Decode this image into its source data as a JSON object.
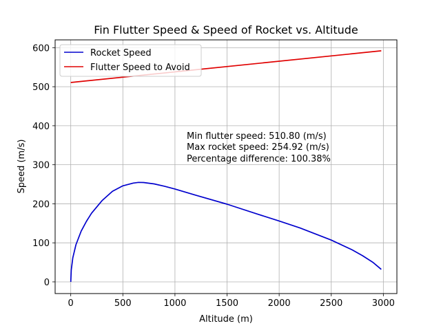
{
  "chart_data": {
    "type": "line",
    "title": "Fin Flutter Speed & Speed of Rocket vs. Altitude",
    "xlabel": "Altitude (m)",
    "ylabel": "Speed (m/s)",
    "xlim": [
      -150,
      3130
    ],
    "ylim": [
      -30,
      620
    ],
    "xticks": [
      0,
      500,
      1000,
      1500,
      2000,
      2500,
      3000
    ],
    "yticks": [
      0,
      100,
      200,
      300,
      400,
      500,
      600
    ],
    "grid": true,
    "legend_position": "upper-left",
    "series": [
      {
        "name": "Rocket Speed",
        "color": "#0000cd",
        "x": [
          0,
          5,
          20,
          50,
          100,
          150,
          200,
          300,
          400,
          500,
          600,
          650,
          700,
          800,
          900,
          1000,
          1200,
          1500,
          1800,
          2000,
          2200,
          2500,
          2700,
          2800,
          2900,
          2980
        ],
        "y": [
          0,
          30,
          62,
          95,
          130,
          155,
          176,
          208,
          232,
          246,
          253,
          254.9,
          254.5,
          251,
          245,
          238,
          222,
          199,
          173,
          156,
          138,
          107,
          82,
          67,
          50,
          32
        ]
      },
      {
        "name": "Flutter Speed to Avoid",
        "color": "#e00000",
        "x": [
          0,
          2980
        ],
        "y": [
          510.8,
          592
        ]
      }
    ],
    "annotations": [
      "Min flutter speed: 510.80 (m/s)",
      "Max rocket speed: 254.92 (m/s)",
      "Percentage difference: 100.38%"
    ]
  }
}
